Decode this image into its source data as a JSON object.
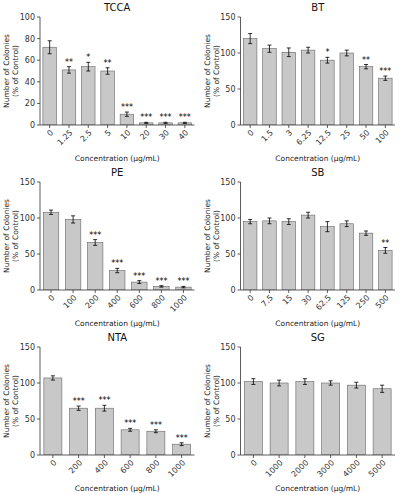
{
  "chart_data": [
    {
      "type": "bar",
      "title": "TCCA",
      "xlabel": "Concentration (μg/mL)",
      "ylabel": "Number of Colonies\n(% of Control)",
      "categories": [
        "0",
        "1.25",
        "2.5",
        "5",
        "10",
        "20",
        "30",
        "40"
      ],
      "values": [
        72,
        51,
        54,
        50,
        10,
        2,
        2,
        2
      ],
      "errors": [
        6,
        3,
        4,
        3,
        2,
        0.5,
        0.5,
        0.5
      ],
      "annotations": [
        {
          "category": "1.25",
          "text": "**"
        },
        {
          "category": "2.5",
          "text": "*"
        },
        {
          "category": "5",
          "text": "**"
        },
        {
          "category": "10",
          "text": "***"
        },
        {
          "category": "20",
          "text": "***"
        },
        {
          "category": "30",
          "text": "***"
        },
        {
          "category": "40",
          "text": "***"
        }
      ],
      "ylim": [
        0,
        100
      ],
      "yticks": [
        0,
        20,
        40,
        60,
        80,
        100
      ],
      "color": "#c8c8c8",
      "grid": false
    },
    {
      "type": "bar",
      "title": "BT",
      "xlabel": "Concentration (μg/mL)",
      "ylabel": "Number of Colonies\n(% of Control)",
      "categories": [
        "0",
        "1.5",
        "3",
        "6.25",
        "12.5",
        "25",
        "50",
        "100"
      ],
      "values": [
        120,
        106,
        101,
        104,
        90,
        100,
        81,
        65
      ],
      "errors": [
        7,
        5,
        6,
        4,
        4,
        4,
        3,
        3
      ],
      "annotations": [
        {
          "category": "12.5",
          "text": "*"
        },
        {
          "category": "50",
          "text": "**"
        },
        {
          "category": "100",
          "text": "***"
        }
      ],
      "ylim": [
        0,
        150
      ],
      "yticks": [
        0,
        50,
        100,
        150
      ],
      "color": "#c8c8c8",
      "grid": false
    },
    {
      "type": "bar",
      "title": "PE",
      "xlabel": "Concentration (μg/mL)",
      "ylabel": "Number of Colonies\n(% of Control)",
      "categories": [
        "0",
        "100",
        "200",
        "400",
        "600",
        "800",
        "1000"
      ],
      "values": [
        108,
        98,
        66,
        27,
        11,
        5,
        4
      ],
      "errors": [
        3,
        5,
        4,
        3,
        2,
        1,
        1
      ],
      "annotations": [
        {
          "category": "200",
          "text": "***"
        },
        {
          "category": "400",
          "text": "***"
        },
        {
          "category": "600",
          "text": "***"
        },
        {
          "category": "800",
          "text": "***"
        },
        {
          "category": "1000",
          "text": "***"
        }
      ],
      "ylim": [
        0,
        150
      ],
      "yticks": [
        0,
        50,
        100,
        150
      ],
      "color": "#c8c8c8",
      "grid": false
    },
    {
      "type": "bar",
      "title": "SB",
      "xlabel": "Concentration (μg/mL)",
      "ylabel": "Number of Colonies\n(% of Control)",
      "categories": [
        "0",
        "7.5",
        "15",
        "30",
        "62.5",
        "125",
        "250",
        "500"
      ],
      "values": [
        95,
        96,
        95,
        104,
        88,
        92,
        79,
        55
      ],
      "errors": [
        3,
        4,
        4,
        4,
        7,
        4,
        3,
        4
      ],
      "annotations": [
        {
          "category": "500",
          "text": "**"
        }
      ],
      "ylim": [
        0,
        150
      ],
      "yticks": [
        0,
        50,
        100,
        150
      ],
      "color": "#c8c8c8",
      "grid": false
    },
    {
      "type": "bar",
      "title": "NTA",
      "xlabel": "Concentration (μg/mL)",
      "ylabel": "Number of Colonies\n(% of Control)",
      "categories": [
        "0",
        "200",
        "400",
        "600",
        "800",
        "1000"
      ],
      "values": [
        107,
        65,
        65,
        35,
        33,
        15
      ],
      "errors": [
        3,
        3,
        4,
        2,
        2,
        2
      ],
      "annotations": [
        {
          "category": "200",
          "text": "***"
        },
        {
          "category": "400",
          "text": "***"
        },
        {
          "category": "600",
          "text": "***"
        },
        {
          "category": "800",
          "text": "***"
        },
        {
          "category": "1000",
          "text": "***"
        }
      ],
      "ylim": [
        0,
        150
      ],
      "yticks": [
        0,
        50,
        100,
        150
      ],
      "color": "#c8c8c8",
      "grid": false
    },
    {
      "type": "bar",
      "title": "SG",
      "xlabel": "Concentration (μg/mL)",
      "ylabel": "Number of Colonies\n(% of Control)",
      "categories": [
        "0",
        "1000",
        "2000",
        "3000",
        "4000",
        "5000"
      ],
      "values": [
        102,
        100,
        102,
        100,
        97,
        92
      ],
      "errors": [
        4,
        4,
        4,
        3,
        4,
        5
      ],
      "ylim": [
        0,
        150
      ],
      "yticks": [
        0,
        50,
        100,
        150
      ],
      "color": "#c8c8c8",
      "grid": false
    }
  ]
}
